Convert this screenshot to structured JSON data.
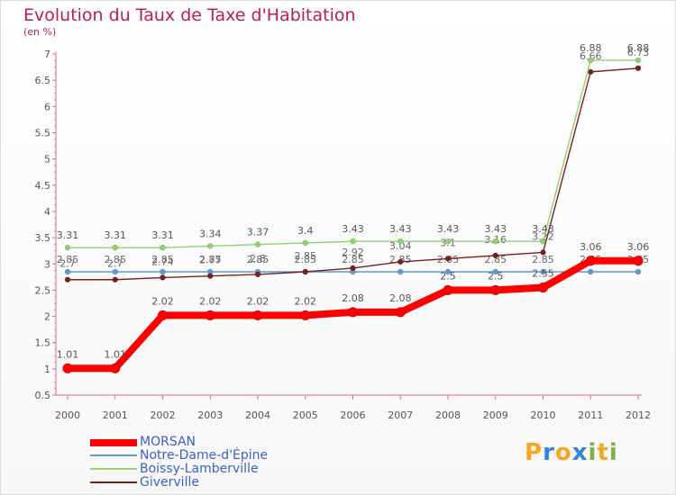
{
  "header": {
    "title": "Evolution du Taux de Taxe d'Habitation",
    "subtitle": "(en %)"
  },
  "chart_data": {
    "type": "line",
    "title": "Evolution du Taux de Taxe d'Habitation",
    "ylabel": "(en %)",
    "xlabel": "",
    "categories": [
      "2000",
      "2001",
      "2002",
      "2003",
      "2004",
      "2005",
      "2006",
      "2007",
      "2008",
      "2009",
      "2010",
      "2011",
      "2012"
    ],
    "ylim": [
      0.5,
      7
    ],
    "yticks": [
      "0.5",
      "1",
      "1.5",
      "2",
      "2.5",
      "3",
      "3.5",
      "4",
      "4.5",
      "5",
      "5.5",
      "6",
      "6.5",
      "7"
    ],
    "grid": false,
    "legend": "bottom-left",
    "series": [
      {
        "name": "Notre-Dame-d'Épine",
        "color": "#5b9bd5",
        "values": [
          2.85,
          2.85,
          2.85,
          2.85,
          2.85,
          2.85,
          2.85,
          2.85,
          2.85,
          2.85,
          2.85,
          2.85,
          2.85
        ],
        "labels": [
          "2.85",
          "2.85",
          "2.85",
          "2.85",
          "2.85",
          "2.85",
          "2.85",
          "2.85",
          "2.85",
          "2.85",
          "2.85",
          "2.85",
          "2.85"
        ]
      },
      {
        "name": "Giverville",
        "color": "#7a1f1f",
        "values": [
          2.7,
          2.7,
          2.74,
          2.77,
          2.8,
          2.85,
          2.92,
          3.04,
          3.1,
          3.16,
          3.22,
          6.66,
          6.73
        ],
        "labels": [
          "2.7",
          "2.7",
          "2.74",
          "2.77",
          "2.8",
          "2.85",
          "2.92",
          "3.04",
          "3.1",
          "3.16",
          "3.22",
          "6.66",
          "6.73"
        ]
      },
      {
        "name": "Boissy-Lamberville",
        "color": "#8fd36a",
        "values": [
          3.31,
          3.31,
          3.31,
          3.34,
          3.37,
          3.4,
          3.43,
          3.43,
          3.43,
          3.43,
          3.43,
          6.88,
          6.88
        ],
        "labels": [
          "3.31",
          "3.31",
          "3.31",
          "3.34",
          "3.37",
          "3.4",
          "3.43",
          "3.43",
          "3.43",
          "3.43",
          "3.43",
          "6.88",
          "6.88"
        ]
      },
      {
        "name": "MORSAN",
        "color": "#ff0000",
        "values": [
          1.01,
          1.01,
          2.02,
          2.02,
          2.02,
          2.02,
          2.08,
          2.08,
          2.5,
          2.5,
          2.55,
          3.06,
          3.06
        ],
        "labels": [
          "1.01",
          "1.01",
          "2.02",
          "2.02",
          "2.02",
          "2.02",
          "2.08",
          "2.08",
          "2.5",
          "2.5",
          "2.55",
          "3.06",
          "3.06"
        ]
      }
    ]
  },
  "legend": {
    "items": [
      {
        "label": "MORSAN",
        "color": "#ff0000"
      },
      {
        "label": "Notre-Dame-d'Épine",
        "color": "#5b9bd5"
      },
      {
        "label": "Boissy-Lamberville",
        "color": "#8fd36a"
      },
      {
        "label": "Giverville",
        "color": "#7a1f1f"
      }
    ]
  },
  "logo": {
    "letters": [
      "P",
      "r",
      "o",
      "x",
      "i",
      "t",
      "i"
    ],
    "colors": [
      "#f5a623",
      "#2e86de",
      "#f5a623",
      "#2e86de",
      "#7cb342",
      "#f5a623",
      "#7cb342"
    ]
  }
}
